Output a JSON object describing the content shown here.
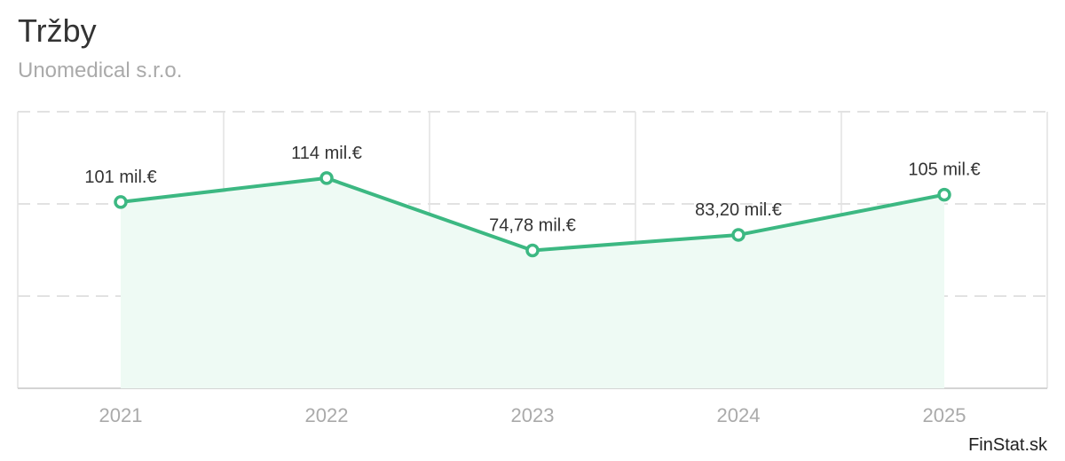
{
  "header": {
    "title": "Tržby",
    "subtitle": "Unomedical s.r.o."
  },
  "brand": "FinStat.sk",
  "colors": {
    "line": "#3cb882",
    "area": "#eefaf4",
    "grid": "#e2e2e2",
    "point_fill": "#ffffff"
  },
  "chart_data": {
    "type": "area",
    "title": "Tržby",
    "subtitle": "Unomedical s.r.o.",
    "categories": [
      "2021",
      "2022",
      "2023",
      "2024",
      "2025"
    ],
    "series": [
      {
        "values": [
          101,
          114,
          74.78,
          83.2,
          105
        ],
        "labels": [
          "101 mil.€",
          "114 mil.€",
          "74,78 mil.€",
          "83,20 mil.€",
          "105 mil.€"
        ]
      }
    ],
    "unit": "mil.€",
    "ylim": [
      0,
      150
    ],
    "grid": true,
    "legend": "none"
  }
}
